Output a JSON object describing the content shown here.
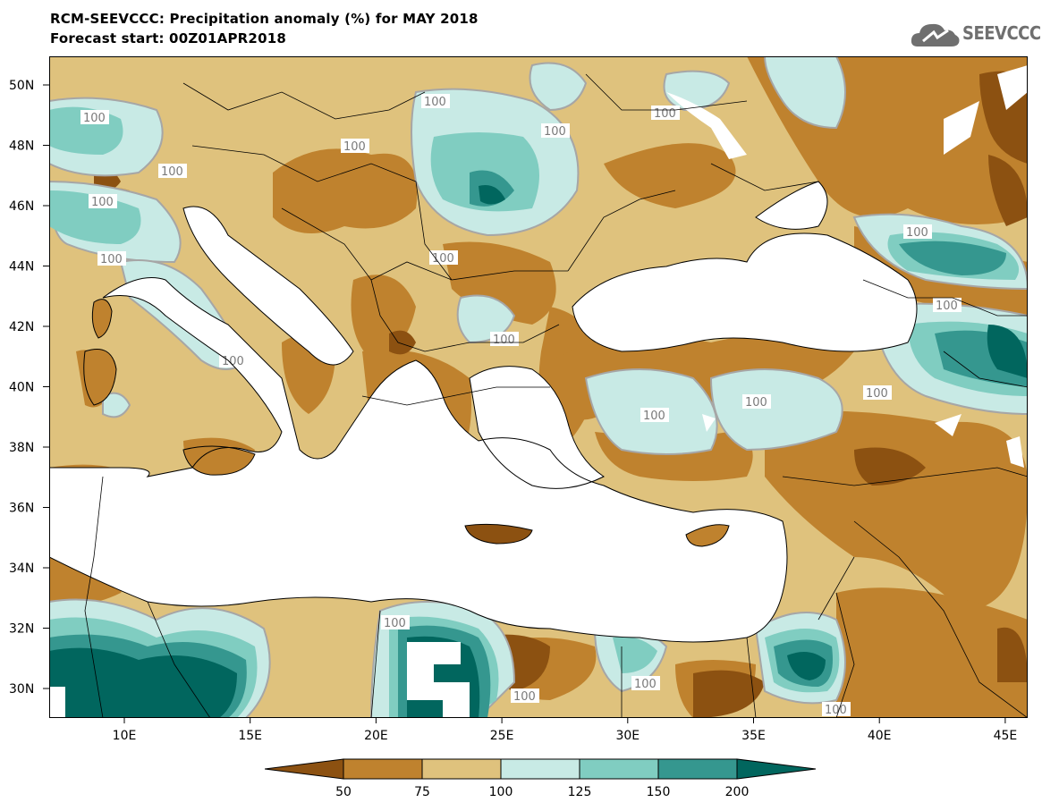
{
  "title": {
    "line1": "RCM-SEEVCCC: Precipitation anomaly (%) for MAY 2018",
    "line2": "Forecast start: 00Z01APR2018"
  },
  "logo": {
    "text": "SEEVCCC"
  },
  "map": {
    "lon_range": [
      7,
      46
    ],
    "lat_range": [
      29,
      51
    ],
    "lat_ticks": [
      "50N",
      "48N",
      "46N",
      "44N",
      "42N",
      "40N",
      "38N",
      "36N",
      "34N",
      "32N",
      "30N"
    ],
    "lon_ticks": [
      "10E",
      "15E",
      "20E",
      "25E",
      "30E",
      "35E",
      "40E",
      "45E"
    ],
    "contour_label": "100",
    "colors": {
      "below_50": "#8c5111",
      "50_75": "#bf822e",
      "75_100": "#dfc27d",
      "100_125": "#c8eae5",
      "125_150": "#80cdc1",
      "150_200": "#35978f",
      "above_200": "#01665e",
      "contour_line": "#a6a6a6",
      "sea": "#ffffff"
    }
  },
  "legend": {
    "labels": [
      "50",
      "75",
      "100",
      "125",
      "150",
      "200"
    ],
    "colors": [
      "#8c5111",
      "#bf822e",
      "#dfc27d",
      "#c8eae5",
      "#80cdc1",
      "#35978f",
      "#01665e"
    ]
  }
}
